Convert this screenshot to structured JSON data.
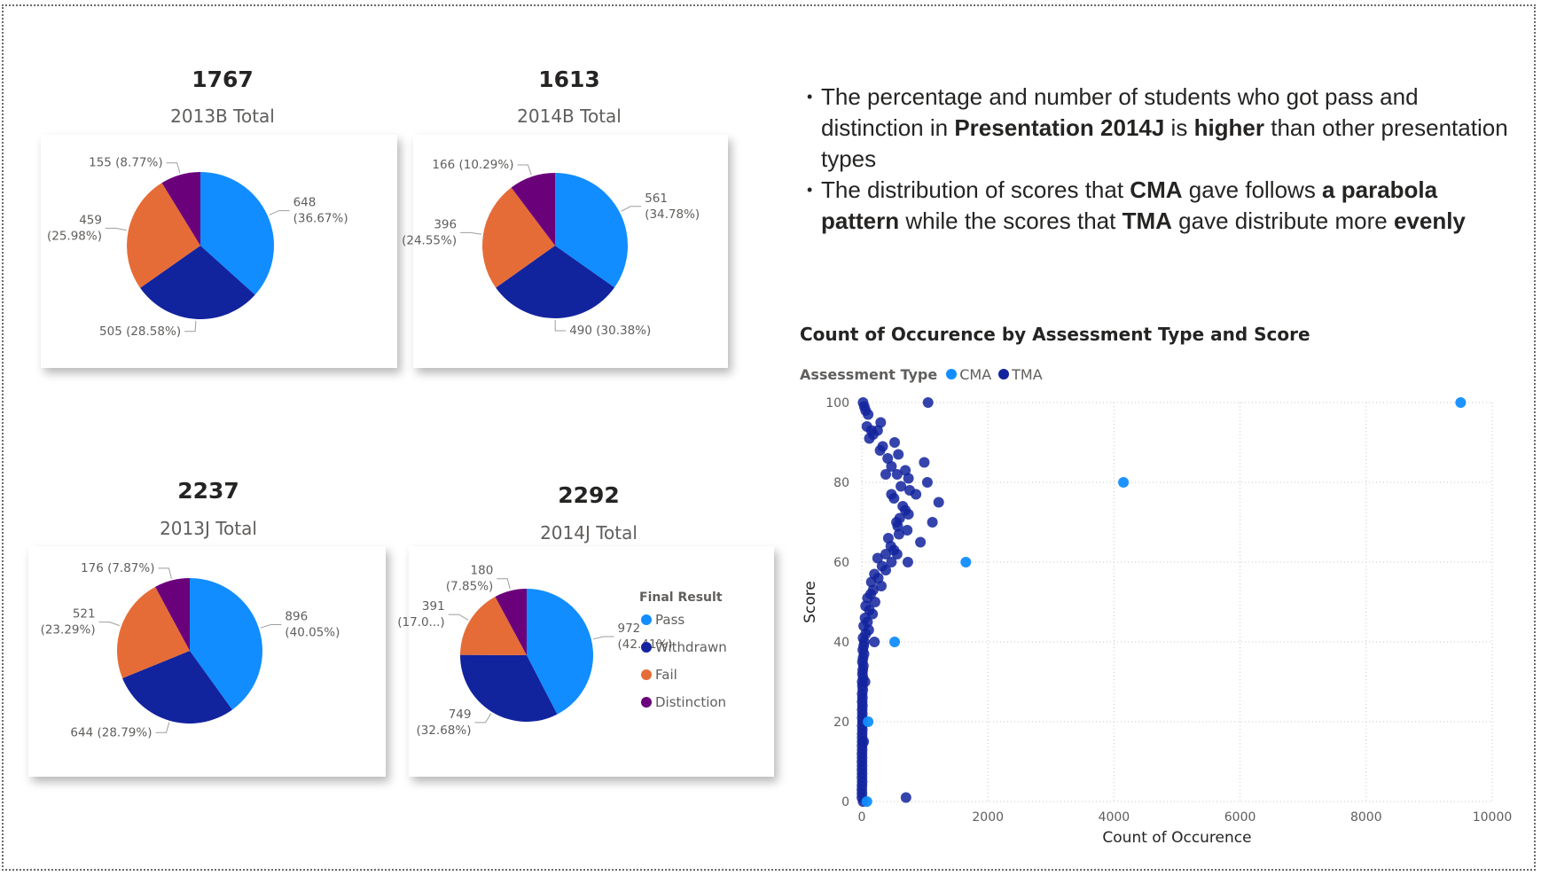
{
  "kpis": [
    {
      "value": "1767",
      "label": "2013B Total"
    },
    {
      "value": "1613",
      "label": "2014B Total"
    },
    {
      "value": "2237",
      "label": "2013J Total"
    },
    {
      "value": "2292",
      "label": "2014J Total"
    }
  ],
  "colors": {
    "Pass": "#118dff",
    "Withdrawn": "#12239e",
    "Fail": "#e66c37",
    "Distinction": "#6b007b",
    "CMA": "#118dff",
    "TMA": "#12239e"
  },
  "insights": {
    "b1_p1": "The percentage and number of students who got pass and distinction in ",
    "b1_s1": "Presentation 2014J",
    "b1_p2": " is ",
    "b1_s2": "higher",
    "b1_p3": " than other presentation types",
    "b2_p1": "The distribution of scores that ",
    "b2_s1": "CMA",
    "b2_p2": " gave follows ",
    "b2_s2": "a parabola pattern",
    "b2_p3": " while the scores that ",
    "b2_s3": "TMA",
    "b2_p4": " gave distribute more ",
    "b2_s4": "evenly"
  },
  "chart_data": [
    {
      "type": "pie",
      "title": "2013B Total",
      "categories": [
        "Pass",
        "Withdrawn",
        "Fail",
        "Distinction"
      ],
      "values": [
        648,
        505,
        459,
        155
      ],
      "labels": [
        [
          "648",
          "(36.67%)"
        ],
        [
          "505 (28.58%)"
        ],
        [
          "459",
          "(25.98%)"
        ],
        [
          "155 (8.77%)"
        ]
      ]
    },
    {
      "type": "pie",
      "title": "2014B Total",
      "categories": [
        "Pass",
        "Withdrawn",
        "Fail",
        "Distinction"
      ],
      "values": [
        561,
        490,
        396,
        166
      ],
      "labels": [
        [
          "561",
          "(34.78%)"
        ],
        [
          "490 (30.38%)"
        ],
        [
          "396",
          "(24.55%)"
        ],
        [
          "166 (10.29%)"
        ]
      ]
    },
    {
      "type": "pie",
      "title": "2013J Total",
      "categories": [
        "Pass",
        "Withdrawn",
        "Fail",
        "Distinction"
      ],
      "values": [
        896,
        644,
        521,
        176
      ],
      "labels": [
        [
          "896",
          "(40.05%)"
        ],
        [
          "644 (28.79%)"
        ],
        [
          "521",
          "(23.29%)"
        ],
        [
          "176 (7.87%)"
        ]
      ]
    },
    {
      "type": "pie",
      "title": "2014J Total",
      "categories": [
        "Pass",
        "Withdrawn",
        "Fail",
        "Distinction"
      ],
      "values": [
        972,
        749,
        391,
        180
      ],
      "labels": [
        [
          "972",
          "(42.41%)"
        ],
        [
          "749",
          "(32.68%)"
        ],
        [
          "391",
          "(17.0...)"
        ],
        [
          "180",
          "(7.85%)"
        ]
      ],
      "legend": {
        "title": "Final Result",
        "items": [
          "Pass",
          "Withdrawn",
          "Fail",
          "Distinction"
        ],
        "placement": "right"
      }
    },
    {
      "type": "scatter",
      "title": "Count of Occurence by Assessment Type and Score",
      "xlabel": "Count of Occurence",
      "ylabel": "Score",
      "xlim": [
        0,
        10000
      ],
      "ylim": [
        0,
        100
      ],
      "xticks": [
        0,
        2000,
        4000,
        6000,
        8000,
        10000
      ],
      "yticks": [
        0,
        20,
        40,
        60,
        80,
        100
      ],
      "grid": true,
      "legend": {
        "title": "Assessment Type",
        "placement": "top-left"
      },
      "series": [
        {
          "name": "CMA",
          "points": [
            [
              9500,
              100
            ],
            [
              4150,
              80
            ],
            [
              1650,
              60
            ],
            [
              520,
              40
            ],
            [
              100,
              20
            ],
            [
              80,
              0
            ]
          ]
        },
        {
          "name": "TMA",
          "points": [
            [
              20,
              100
            ],
            [
              40,
              99
            ],
            [
              60,
              98
            ],
            [
              1050,
              100
            ],
            [
              100,
              97
            ],
            [
              300,
              95
            ],
            [
              80,
              94
            ],
            [
              150,
              93
            ],
            [
              250,
              93
            ],
            [
              180,
              92
            ],
            [
              120,
              91
            ],
            [
              520,
              90
            ],
            [
              330,
              89
            ],
            [
              290,
              88
            ],
            [
              580,
              87
            ],
            [
              410,
              86
            ],
            [
              990,
              85
            ],
            [
              470,
              84
            ],
            [
              690,
              83
            ],
            [
              560,
              82
            ],
            [
              380,
              82
            ],
            [
              740,
              81
            ],
            [
              1040,
              80
            ],
            [
              620,
              79
            ],
            [
              760,
              78
            ],
            [
              470,
              77
            ],
            [
              860,
              77
            ],
            [
              510,
              76
            ],
            [
              1220,
              75
            ],
            [
              650,
              74
            ],
            [
              690,
              73
            ],
            [
              740,
              72
            ],
            [
              600,
              71
            ],
            [
              1120,
              70
            ],
            [
              550,
              70
            ],
            [
              570,
              69
            ],
            [
              720,
              68
            ],
            [
              590,
              67
            ],
            [
              420,
              66
            ],
            [
              930,
              65
            ],
            [
              460,
              64
            ],
            [
              510,
              63
            ],
            [
              560,
              62
            ],
            [
              380,
              62
            ],
            [
              250,
              61
            ],
            [
              470,
              60
            ],
            [
              730,
              60
            ],
            [
              320,
              59
            ],
            [
              380,
              58
            ],
            [
              200,
              57
            ],
            [
              260,
              56
            ],
            [
              150,
              55
            ],
            [
              310,
              54
            ],
            [
              180,
              53
            ],
            [
              140,
              52
            ],
            [
              90,
              51
            ],
            [
              210,
              50
            ],
            [
              60,
              49
            ],
            [
              120,
              48
            ],
            [
              170,
              47
            ],
            [
              50,
              46
            ],
            [
              90,
              45
            ],
            [
              30,
              44
            ],
            [
              110,
              43
            ],
            [
              60,
              42
            ],
            [
              20,
              41
            ],
            [
              40,
              40
            ],
            [
              200,
              40
            ],
            [
              30,
              39
            ],
            [
              15,
              38
            ],
            [
              35,
              37
            ],
            [
              20,
              36
            ],
            [
              10,
              35
            ],
            [
              25,
              34
            ],
            [
              15,
              33
            ],
            [
              10,
              32
            ],
            [
              20,
              31
            ],
            [
              5,
              30
            ],
            [
              50,
              30
            ],
            [
              10,
              29
            ],
            [
              15,
              28
            ],
            [
              5,
              27
            ],
            [
              10,
              26
            ],
            [
              5,
              25
            ],
            [
              10,
              24
            ],
            [
              5,
              23
            ],
            [
              8,
              22
            ],
            [
              5,
              21
            ],
            [
              10,
              20
            ],
            [
              5,
              19
            ],
            [
              8,
              18
            ],
            [
              5,
              17
            ],
            [
              6,
              16
            ],
            [
              5,
              15
            ],
            [
              30,
              15
            ],
            [
              4,
              14
            ],
            [
              5,
              13
            ],
            [
              3,
              12
            ],
            [
              4,
              11
            ],
            [
              3,
              10
            ],
            [
              4,
              9
            ],
            [
              3,
              8
            ],
            [
              4,
              7
            ],
            [
              3,
              6
            ],
            [
              5,
              5
            ],
            [
              3,
              4
            ],
            [
              2,
              3
            ],
            [
              3,
              2
            ],
            [
              2,
              1
            ],
            [
              20,
              0
            ],
            [
              700,
              1
            ]
          ]
        }
      ]
    }
  ]
}
